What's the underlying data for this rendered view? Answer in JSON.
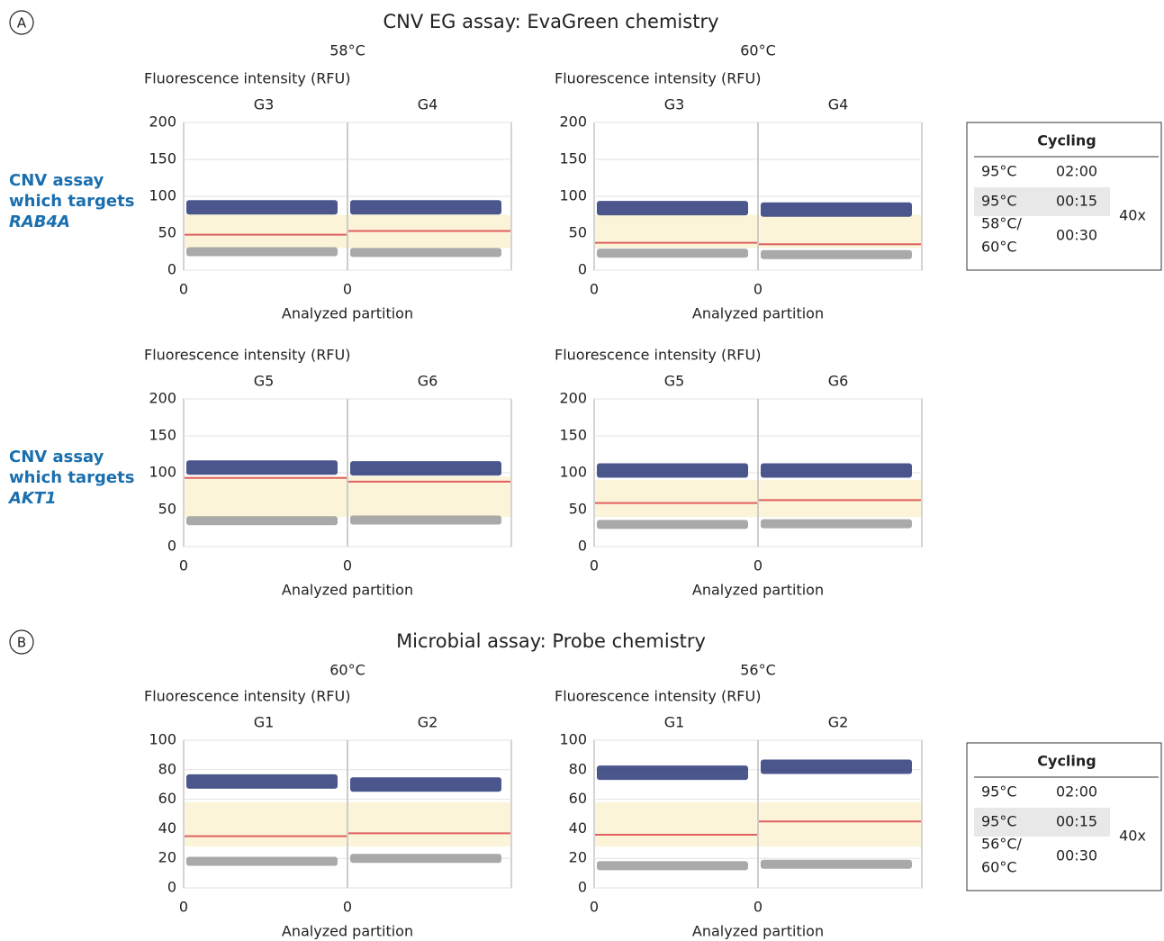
{
  "sections": [
    {
      "label": "A",
      "title": "CNV EG assay: EvaGreen chemistry",
      "columns": [
        "58°C",
        "60°C"
      ],
      "rows": [
        {
          "label_lines": [
            "CNV assay",
            "which targets"
          ],
          "target": "RAB4A"
        },
        {
          "label_lines": [
            "CNV assay",
            "which targets"
          ],
          "target": "AKT1"
        }
      ]
    },
    {
      "label": "B",
      "title": "Microbial assay: Probe chemistry",
      "columns": [
        "60°C",
        "56°C"
      ],
      "rows": []
    }
  ],
  "cycling": [
    {
      "title": "Cycling",
      "steps": [
        [
          [
            "95°C"
          ],
          "02:00"
        ],
        [
          [
            "95°C"
          ],
          "00:15"
        ],
        [
          [
            "58°C/",
            "60°C"
          ],
          "00:30"
        ]
      ],
      "repeat": "40x"
    },
    {
      "title": "Cycling",
      "steps": [
        [
          [
            "95°C"
          ],
          "02:00"
        ],
        [
          [
            "95°C"
          ],
          "00:15"
        ],
        [
          [
            "56°C/",
            "60°C"
          ],
          "00:30"
        ]
      ],
      "repeat": "40x"
    }
  ],
  "chart_data": [
    {
      "type": "scatter",
      "y_label": "Fluorescence intensity (RFU)",
      "x_label": "Analyzed partition",
      "ylim": [
        0,
        200
      ],
      "yticks": [
        0,
        50,
        100,
        150,
        200
      ],
      "xticks": [
        0
      ],
      "grid": true,
      "shaded": [
        30,
        75
      ],
      "groups": [
        {
          "name": "G3",
          "positive": 85,
          "negative": 25,
          "threshold": 48
        },
        {
          "name": "G4",
          "positive": 85,
          "negative": 24,
          "threshold": 53
        }
      ]
    },
    {
      "type": "scatter",
      "y_label": "Fluorescence intensity (RFU)",
      "x_label": "Analyzed partition",
      "ylim": [
        0,
        200
      ],
      "yticks": [
        0,
        50,
        100,
        150,
        200
      ],
      "xticks": [
        0
      ],
      "grid": true,
      "shaded": [
        30,
        75
      ],
      "groups": [
        {
          "name": "G3",
          "positive": 84,
          "negative": 23,
          "threshold": 37
        },
        {
          "name": "G4",
          "positive": 82,
          "negative": 21,
          "threshold": 35
        }
      ]
    },
    {
      "type": "scatter",
      "y_label": "Fluorescence intensity (RFU)",
      "x_label": "Analyzed partition",
      "ylim": [
        0,
        200
      ],
      "yticks": [
        0,
        50,
        100,
        150,
        200
      ],
      "xticks": [
        0
      ],
      "grid": true,
      "shaded": [
        40,
        95
      ],
      "groups": [
        {
          "name": "G5",
          "positive": 107,
          "negative": 35,
          "threshold": 93
        },
        {
          "name": "G6",
          "positive": 106,
          "negative": 36,
          "threshold": 88
        }
      ]
    },
    {
      "type": "scatter",
      "y_label": "Fluorescence intensity (RFU)",
      "x_label": "Analyzed partition",
      "ylim": [
        0,
        200
      ],
      "yticks": [
        0,
        50,
        100,
        150,
        200
      ],
      "xticks": [
        0
      ],
      "grid": true,
      "shaded": [
        40,
        90
      ],
      "groups": [
        {
          "name": "G5",
          "positive": 103,
          "negative": 30,
          "threshold": 59
        },
        {
          "name": "G6",
          "positive": 103,
          "negative": 31,
          "threshold": 63
        }
      ]
    },
    {
      "type": "scatter",
      "y_label": "Fluorescence intensity (RFU)",
      "x_label": "Analyzed partition",
      "ylim": [
        0,
        100
      ],
      "yticks": [
        0,
        20,
        40,
        60,
        80,
        100
      ],
      "xticks": [
        0
      ],
      "grid": true,
      "shaded": [
        28,
        58
      ],
      "groups": [
        {
          "name": "G1",
          "positive": 72,
          "negative": 18,
          "threshold": 35
        },
        {
          "name": "G2",
          "positive": 70,
          "negative": 20,
          "threshold": 37
        }
      ]
    },
    {
      "type": "scatter",
      "y_label": "Fluorescence intensity (RFU)",
      "x_label": "Analyzed partition",
      "ylim": [
        0,
        100
      ],
      "yticks": [
        0,
        20,
        40,
        60,
        80,
        100
      ],
      "xticks": [
        0
      ],
      "grid": true,
      "shaded": [
        28,
        58
      ],
      "groups": [
        {
          "name": "G1",
          "positive": 78,
          "negative": 15,
          "threshold": 36
        },
        {
          "name": "G2",
          "positive": 82,
          "negative": 16,
          "threshold": 45
        }
      ]
    }
  ]
}
